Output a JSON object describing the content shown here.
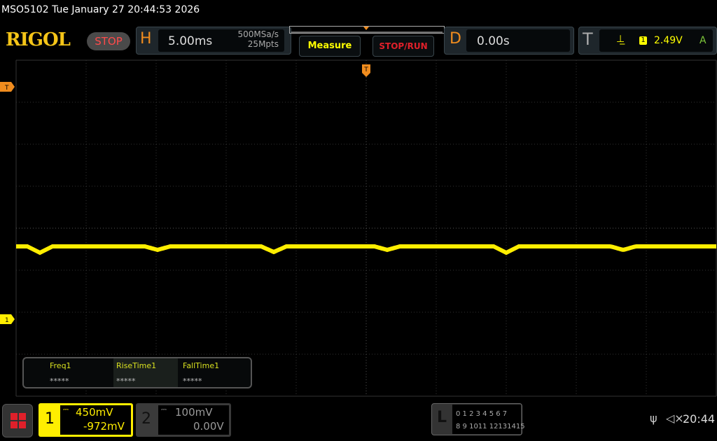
{
  "status_bar": {
    "title": "MSO5102  Tue January 27 20:44:53 2026",
    "clock": "20:44",
    "usb_icon": "usb-icon",
    "mute_icon": "speaker-muted-icon"
  },
  "header": {
    "brand": "RIGOL",
    "run_state": "STOP",
    "horizontal": {
      "letter": "H",
      "timebase": "5.00ms",
      "sample_rate": "500MSa/s",
      "memory_depth": "25Mpts"
    },
    "measure_label": "Measure",
    "stop_run_label": "STOP/RUN",
    "delay": {
      "letter": "D",
      "value": "0.00s"
    },
    "trigger": {
      "letter": "T",
      "slope_icon": "rising-edge-icon",
      "source": "1",
      "level": "2.49V",
      "mode": "A"
    }
  },
  "markers": {
    "trigger_pos": "T",
    "trigger_level": "T",
    "ch1_offset": "1"
  },
  "measurements": [
    {
      "name": "Freq1",
      "value": "*****"
    },
    {
      "name": "RiseTime1",
      "value": "*****"
    },
    {
      "name": "FallTime1",
      "value": "*****"
    }
  ],
  "channels": [
    {
      "num": "1",
      "scale": "450mV",
      "offset": "-972mV",
      "color": "#ffee00",
      "active": true
    },
    {
      "num": "2",
      "scale": "100mV",
      "offset": "0.00V",
      "color": "#888888",
      "active": false
    }
  ],
  "logic": {
    "letter": "L",
    "row1": "0 1 2 3  4 5 6 7",
    "row2": "8 9 1011 12131415"
  },
  "colors": {
    "ch1": "#ffee00",
    "accent": "#f08c1e",
    "stop": "#e0202a"
  }
}
